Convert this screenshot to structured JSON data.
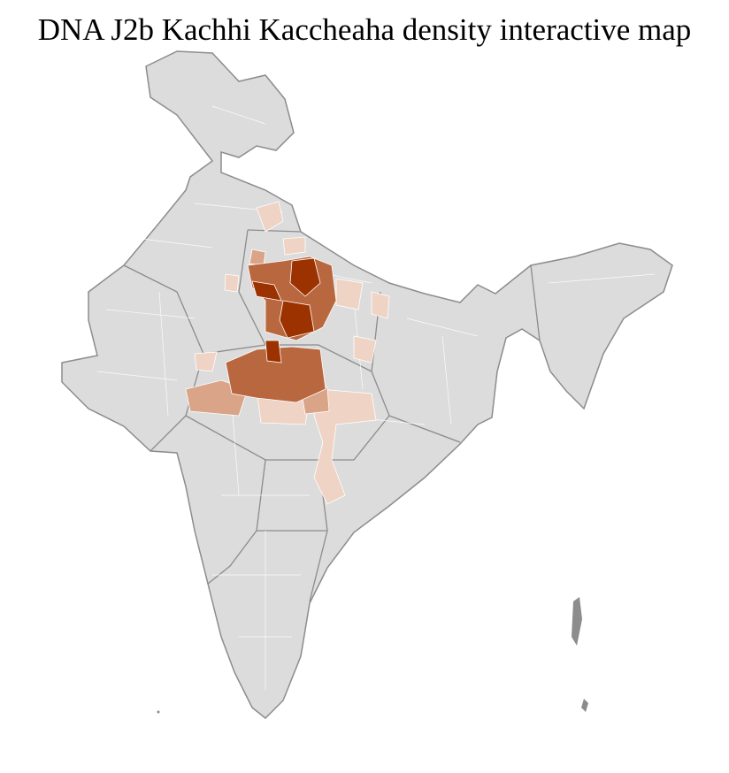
{
  "title": "DNA J2b Kachhi Kaccheaha density interactive map",
  "map": {
    "region": "India districts",
    "base_color": "#dcdcdc",
    "district_border_color": "#ffffff",
    "state_border_color": "#8c8c8c",
    "density_scale": [
      "#efd3c5",
      "#d9a488",
      "#b9673f",
      "#9c3200"
    ]
  }
}
